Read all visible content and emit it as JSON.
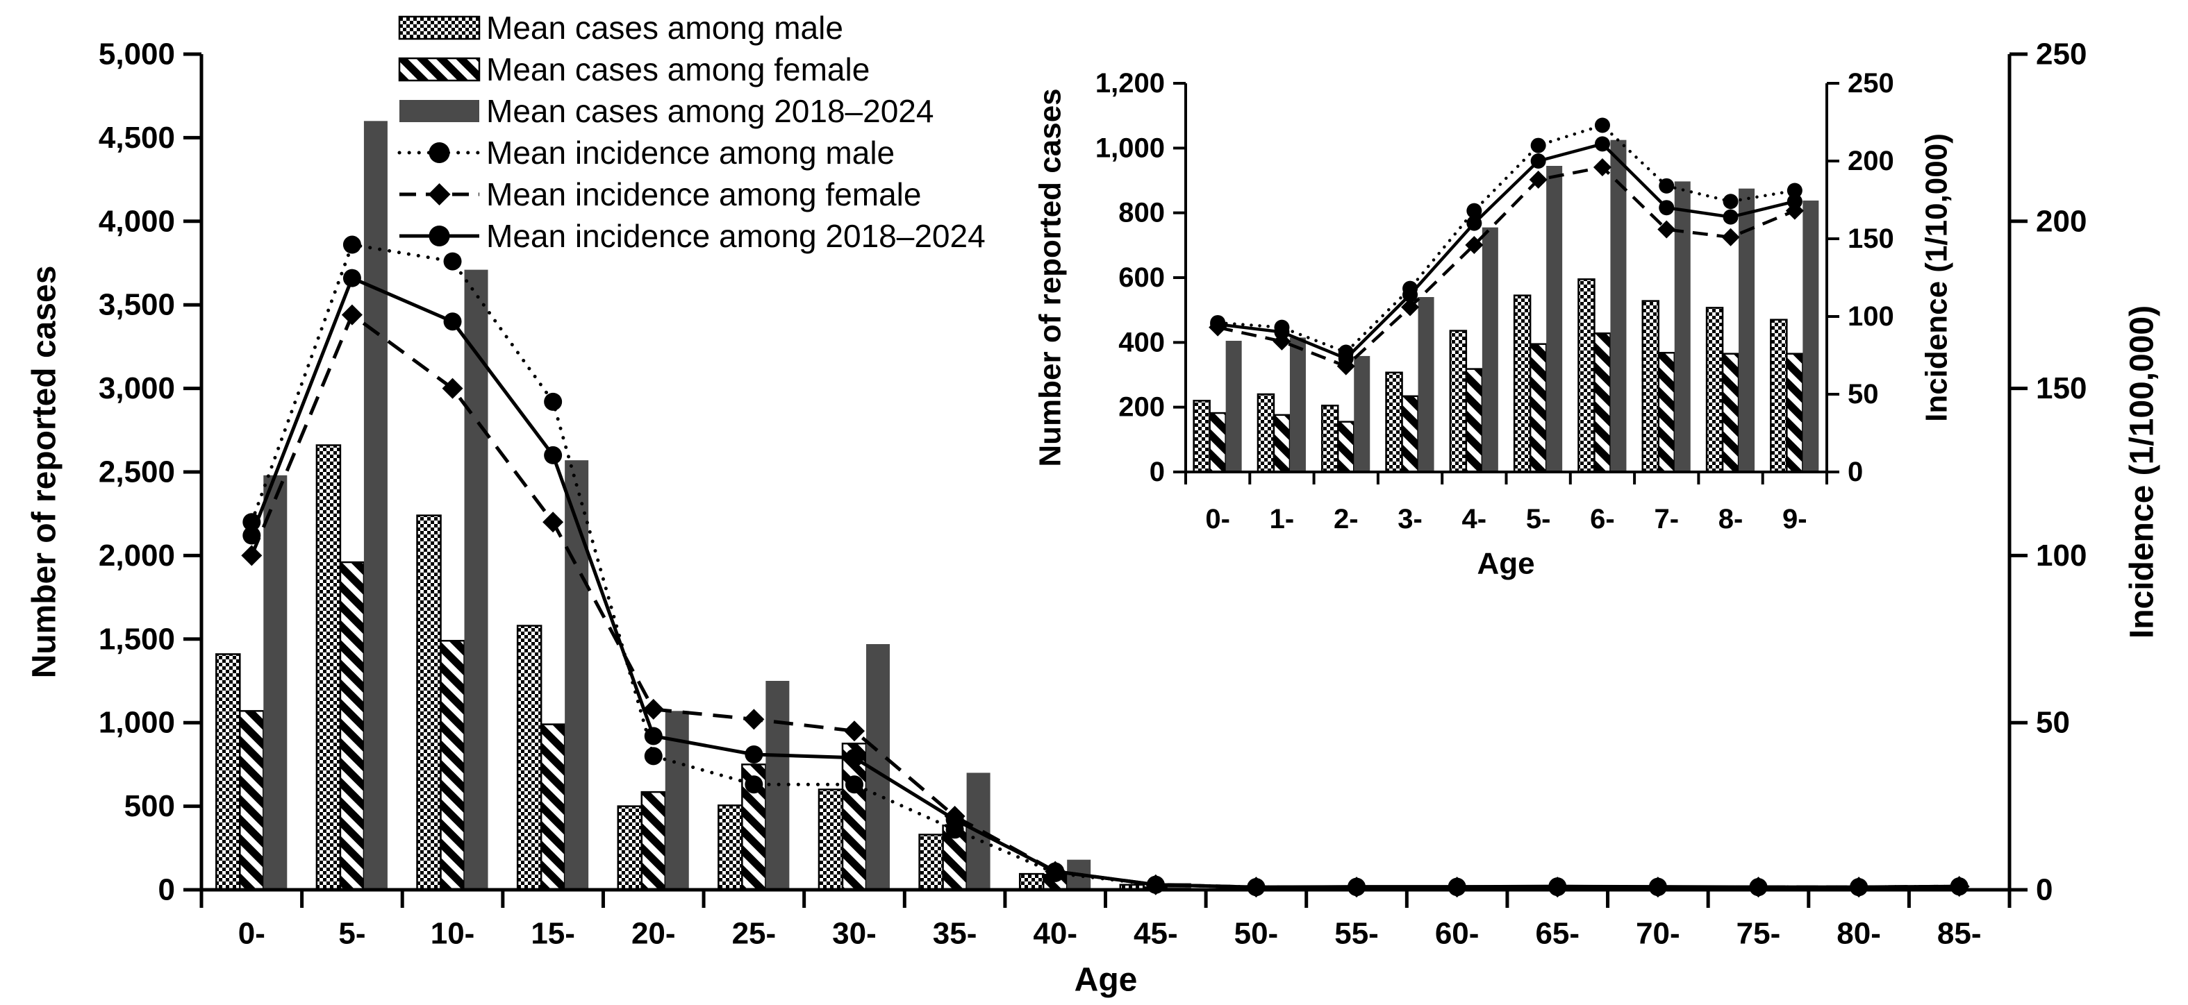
{
  "figure": {
    "background": "#ffffff",
    "ink": "#000000",
    "bar_dark_color": "#4a4a4a"
  },
  "legend": {
    "items": [
      {
        "key": "cases-male",
        "label": "Mean cases among male",
        "swatch": "checker-bar"
      },
      {
        "key": "cases-female",
        "label": "Mean cases among female",
        "swatch": "hatch-bar"
      },
      {
        "key": "cases-total",
        "label": "Mean cases among 2018–2024",
        "swatch": "solid-bar"
      },
      {
        "key": "incidence-male",
        "label": "Mean incidence among male",
        "swatch": "dotted-line-circle"
      },
      {
        "key": "incidence-female",
        "label": "Mean incidence among female",
        "swatch": "dashed-line-diamond"
      },
      {
        "key": "incidence-total",
        "label": "Mean incidence among 2018–2024",
        "swatch": "solid-line-circle"
      }
    ]
  },
  "chart_data": [
    {
      "id": "main",
      "type": "bar+line combo",
      "title": "",
      "xlabel": "Age",
      "ylabel_left": "Number of reported cases",
      "ylabel_right": "Incidence (1/100,000)",
      "ylim_left": [
        0,
        5000
      ],
      "ytick_left": 500,
      "ylim_right": [
        0,
        250
      ],
      "ytick_right": 50,
      "grid": false,
      "categories": [
        "0-",
        "5-",
        "10-",
        "15-",
        "20-",
        "25-",
        "30-",
        "35-",
        "40-",
        "45-",
        "50-",
        "55-",
        "60-",
        "65-",
        "70-",
        "75-",
        "80-",
        "85-"
      ],
      "series": [
        {
          "key": "male",
          "name": "Mean cases among male",
          "type": "bar",
          "style": "checker",
          "axis": "left",
          "values": [
            1410,
            2660,
            2240,
            1580,
            500,
            505,
            600,
            330,
            95,
            30,
            5,
            4,
            4,
            4,
            4,
            3,
            2,
            2
          ]
        },
        {
          "key": "female",
          "name": "Mean cases among female",
          "type": "bar",
          "style": "hatch",
          "axis": "left",
          "values": [
            1070,
            1960,
            1490,
            990,
            585,
            750,
            875,
            385,
            90,
            15,
            4,
            3,
            3,
            3,
            3,
            2,
            2,
            1
          ]
        },
        {
          "key": "total",
          "name": "Mean cases among 2018–2024",
          "type": "bar",
          "style": "solid",
          "axis": "left",
          "values": [
            2480,
            4600,
            3710,
            2570,
            1070,
            1250,
            1470,
            700,
            180,
            40,
            8,
            6,
            6,
            6,
            6,
            5,
            4,
            3
          ]
        },
        {
          "key": "male",
          "name": "Mean incidence among male",
          "type": "line",
          "style": "dotted",
          "marker": "circle",
          "axis": "right",
          "values": [
            110,
            193,
            188,
            146,
            40,
            31.5,
            31.5,
            18,
            5,
            1.5,
            0.8,
            0.8,
            0.8,
            0.8,
            0.8,
            0.8,
            0.8,
            1
          ]
        },
        {
          "key": "female",
          "name": "Mean incidence among female",
          "type": "line",
          "style": "dashed",
          "marker": "diamond",
          "axis": "right",
          "values": [
            100,
            172,
            150,
            110,
            54,
            51,
            47.5,
            22,
            5.5,
            1.5,
            0.8,
            0.8,
            0.8,
            0.8,
            0.8,
            0.8,
            0.8,
            1
          ]
        },
        {
          "key": "total",
          "name": "Mean incidence among 2018–2024",
          "type": "line",
          "style": "solid",
          "marker": "circle",
          "axis": "right",
          "values": [
            106,
            183,
            170,
            130,
            46,
            40.5,
            39.5,
            21,
            5.5,
            1.5,
            0.8,
            0.9,
            0.9,
            1,
            0.9,
            0.8,
            0.8,
            1
          ]
        }
      ]
    },
    {
      "id": "inset",
      "type": "bar+line combo",
      "title": "",
      "xlabel": "Age",
      "ylabel_left": "Number of reported cases",
      "ylabel_right": "Incidence (1/10,000)",
      "ylim_left": [
        0,
        1200
      ],
      "ytick_left": 200,
      "ylim_right": [
        0,
        250
      ],
      "ytick_right": 50,
      "grid": false,
      "categories": [
        "0-",
        "1-",
        "2-",
        "3-",
        "4-",
        "5-",
        "6-",
        "7-",
        "8-",
        "9-"
      ],
      "series": [
        {
          "key": "male",
          "name": "Mean cases among male",
          "type": "bar",
          "style": "checker",
          "axis": "left",
          "values": [
            220,
            240,
            205,
            307,
            436,
            545,
            595,
            528,
            507,
            470
          ]
        },
        {
          "key": "female",
          "name": "Mean cases among female",
          "type": "bar",
          "style": "hatch",
          "axis": "left",
          "values": [
            182,
            176,
            155,
            234,
            318,
            395,
            428,
            368,
            365,
            365
          ]
        },
        {
          "key": "total",
          "name": "Mean cases among 2018–2024",
          "type": "bar",
          "style": "solid",
          "axis": "left",
          "values": [
            405,
            415,
            358,
            540,
            755,
            945,
            1025,
            897,
            875,
            838
          ]
        },
        {
          "key": "male",
          "name": "Mean incidence among male",
          "type": "line",
          "style": "dotted",
          "marker": "circle",
          "axis": "right",
          "values": [
            96,
            93,
            77,
            118,
            168,
            210,
            223,
            184,
            174,
            181
          ]
        },
        {
          "key": "female",
          "name": "Mean incidence among female",
          "type": "line",
          "style": "dashed",
          "marker": "diamond",
          "axis": "right",
          "values": [
            93,
            84,
            68,
            106,
            146,
            188,
            196,
            156,
            151,
            168
          ]
        },
        {
          "key": "total",
          "name": "Mean incidence among 2018–2024",
          "type": "line",
          "style": "solid",
          "marker": "circle",
          "axis": "right",
          "values": [
            95,
            90,
            73,
            114,
            160,
            200,
            211,
            170,
            164,
            174
          ]
        }
      ]
    }
  ]
}
